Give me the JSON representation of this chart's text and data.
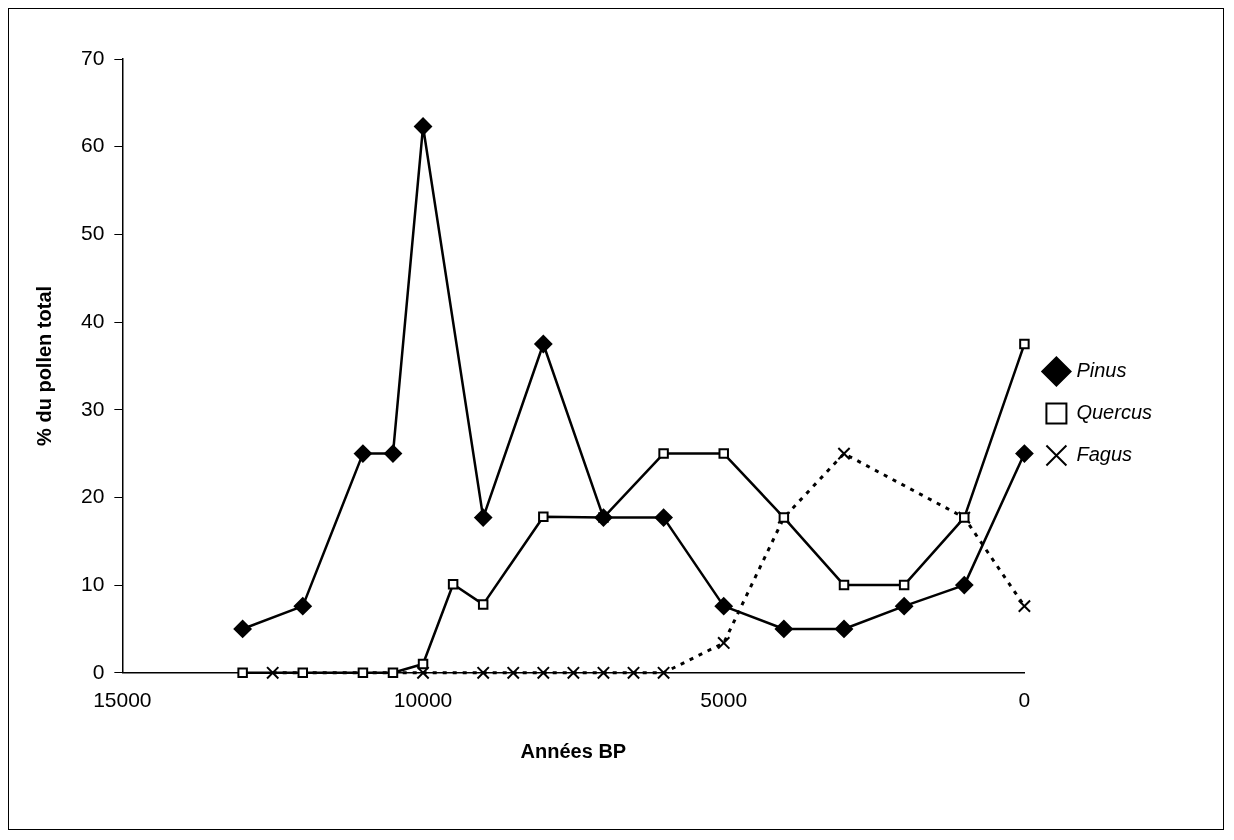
{
  "chart_data": {
    "type": "line",
    "xlabel": "Années BP",
    "ylabel": "% du pollen total",
    "xlim": [
      15000,
      0
    ],
    "xticks": [
      15000,
      10000,
      5000,
      0
    ],
    "ylim": [
      0,
      70
    ],
    "yticks": [
      0,
      10,
      20,
      30,
      40,
      50,
      60,
      70
    ],
    "grid": false,
    "legend": "right",
    "series": [
      {
        "name": "Pinus",
        "color": "#000000",
        "marker": "diamond",
        "line_style": "solid",
        "x": [
          13000,
          12000,
          11000,
          10500,
          10000,
          9000,
          8000,
          7000,
          6000,
          5000,
          4000,
          3000,
          2000,
          1000,
          0
        ],
        "values": [
          5,
          7.6,
          25,
          25,
          62.3,
          17.7,
          37.5,
          17.7,
          17.7,
          7.6,
          5,
          5,
          7.6,
          10,
          25
        ]
      },
      {
        "name": "Quercus",
        "color": "#000000",
        "marker": "square",
        "line_style": "solid",
        "x": [
          13000,
          12000,
          11000,
          10500,
          10000,
          9500,
          9000,
          8000,
          7000,
          6000,
          5000,
          4000,
          3000,
          2000,
          1000,
          0
        ],
        "values": [
          0,
          0,
          0,
          0,
          1,
          10.1,
          7.8,
          17.8,
          17.7,
          25,
          25,
          17.7,
          10,
          10,
          17.7,
          37.5
        ]
      },
      {
        "name": "Fagus",
        "color": "#000000",
        "marker": "cross",
        "line_style": "dotted",
        "x": [
          12500,
          10000,
          9000,
          8500,
          8000,
          7500,
          7000,
          6500,
          6000,
          5000,
          4000,
          3000,
          1000,
          0
        ],
        "values": [
          0,
          0,
          0,
          0,
          0,
          0,
          0,
          0,
          0,
          3.4,
          17.7,
          25,
          17.7,
          7.6
        ]
      }
    ]
  }
}
